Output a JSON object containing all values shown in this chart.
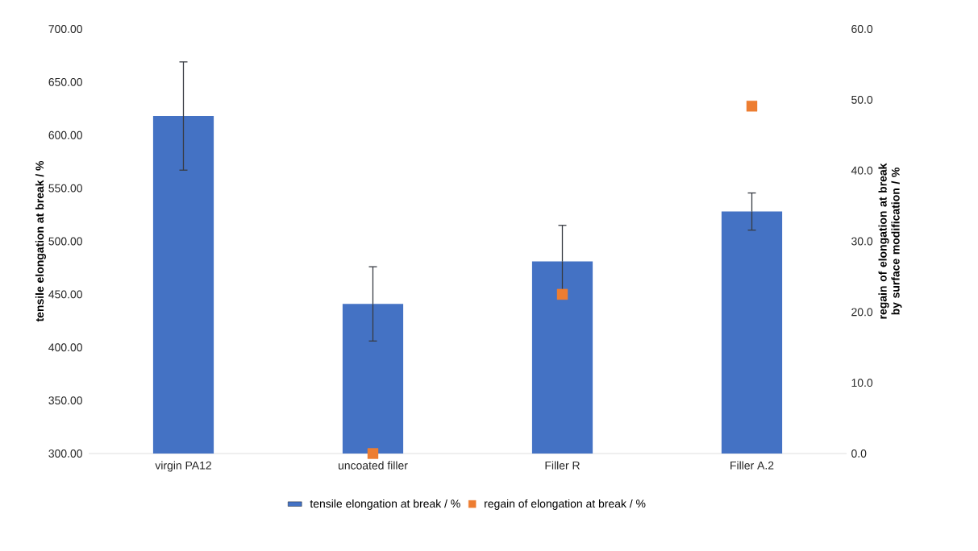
{
  "chart_data": {
    "type": "bar",
    "categories": [
      "virgin PA12",
      "uncoated filler",
      "Filler R",
      "Filler A.2"
    ],
    "ylabel": "tensile elongation at break / %",
    "y2label": "regain of elongation at break by surface modification / %",
    "ylim": [
      300,
      700
    ],
    "yticks": [
      {
        "value": 300,
        "label": "300.00"
      },
      {
        "value": 350,
        "label": "350.00"
      },
      {
        "value": 400,
        "label": "400.00"
      },
      {
        "value": 450,
        "label": "450.00"
      },
      {
        "value": 500,
        "label": "500.00"
      },
      {
        "value": 550,
        "label": "550.00"
      },
      {
        "value": 600,
        "label": "600.00"
      },
      {
        "value": 650,
        "label": "650.00"
      },
      {
        "value": 700,
        "label": "700.00"
      }
    ],
    "y2lim": [
      0,
      60
    ],
    "y2ticks": [
      {
        "value": 0,
        "label": "0.0"
      },
      {
        "value": 10,
        "label": "10.0"
      },
      {
        "value": 20,
        "label": "20.0"
      },
      {
        "value": 30,
        "label": "30.0"
      },
      {
        "value": 40,
        "label": "40.0"
      },
      {
        "value": 50,
        "label": "50.0"
      },
      {
        "value": 60,
        "label": "60.0"
      }
    ],
    "legend": "bottom",
    "series": [
      {
        "name": "tensile elongation at break / %",
        "color": "#4472c4",
        "values": [
          618,
          441,
          481,
          528
        ],
        "errors": [
          51,
          35,
          34,
          17.5
        ]
      },
      {
        "name": "regain of elongation at break / %",
        "type": "scatter",
        "axis": "y2",
        "marker": "square",
        "color": "#ed7d31",
        "values": [
          null,
          0,
          22.5,
          49.1
        ]
      }
    ]
  }
}
